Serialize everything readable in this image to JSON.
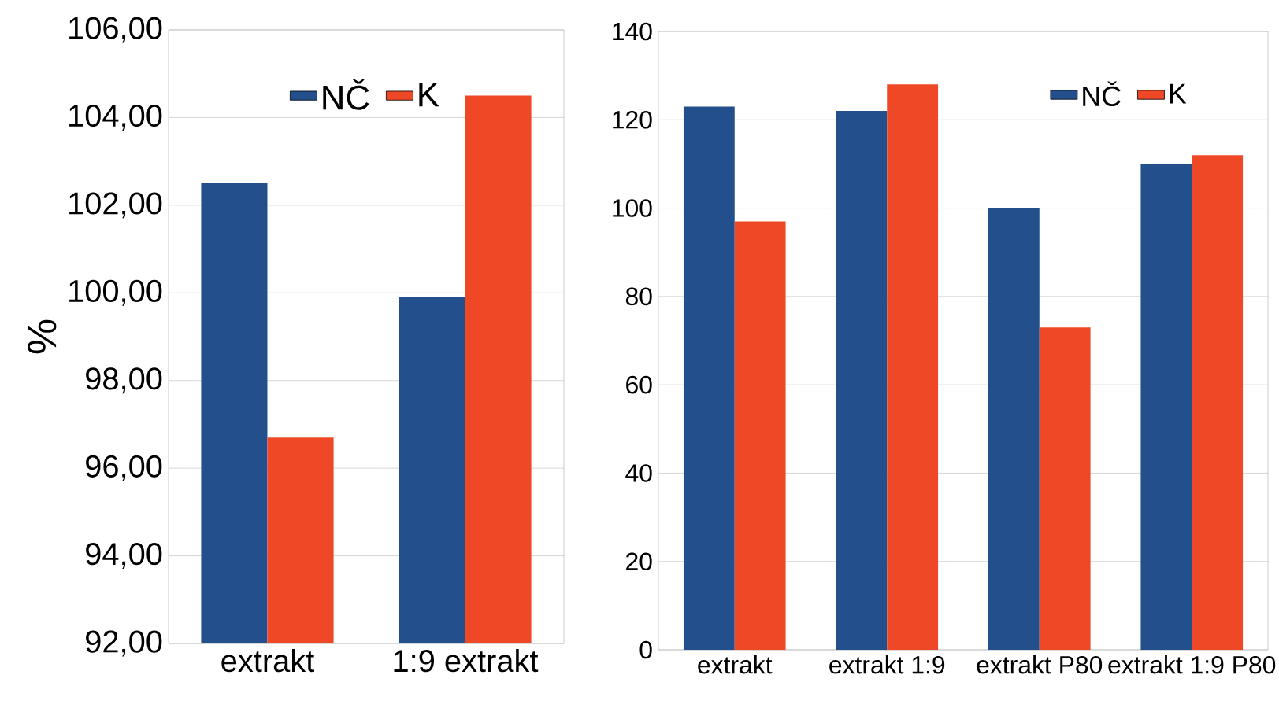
{
  "chart_data": [
    {
      "type": "bar",
      "ylabel": "%",
      "categories": [
        "extrakt",
        "1:9 extrakt"
      ],
      "series": [
        {
          "name": "NČ",
          "color": "#23508c",
          "values": [
            102.5,
            99.9
          ]
        },
        {
          "name": "K",
          "color": "#ee4827",
          "values": [
            96.7,
            104.5
          ]
        }
      ],
      "ylim": [
        92,
        106
      ],
      "yticks": [
        {
          "value": 92,
          "label": "92,00"
        },
        {
          "value": 94,
          "label": "94,00"
        },
        {
          "value": 96,
          "label": "96,00"
        },
        {
          "value": 98,
          "label": "98,00"
        },
        {
          "value": 100,
          "label": "100,00"
        },
        {
          "value": 102,
          "label": "102,00"
        },
        {
          "value": 104,
          "label": "104,00"
        },
        {
          "value": 106,
          "label": "106,00"
        }
      ],
      "grid": "y",
      "legend": "top"
    },
    {
      "type": "bar",
      "categories": [
        "extrakt",
        "extrakt 1:9",
        "extrakt P80",
        "extrakt 1:9 P80"
      ],
      "series": [
        {
          "name": "NČ",
          "color": "#23508c",
          "values": [
            123,
            122,
            100,
            110
          ]
        },
        {
          "name": "K",
          "color": "#ee4827",
          "values": [
            97,
            128,
            73,
            112
          ]
        }
      ],
      "ylim": [
        0,
        140
      ],
      "yticks": [
        0,
        20,
        40,
        60,
        80,
        100,
        120,
        140
      ],
      "grid": "y",
      "legend": "top right"
    }
  ]
}
